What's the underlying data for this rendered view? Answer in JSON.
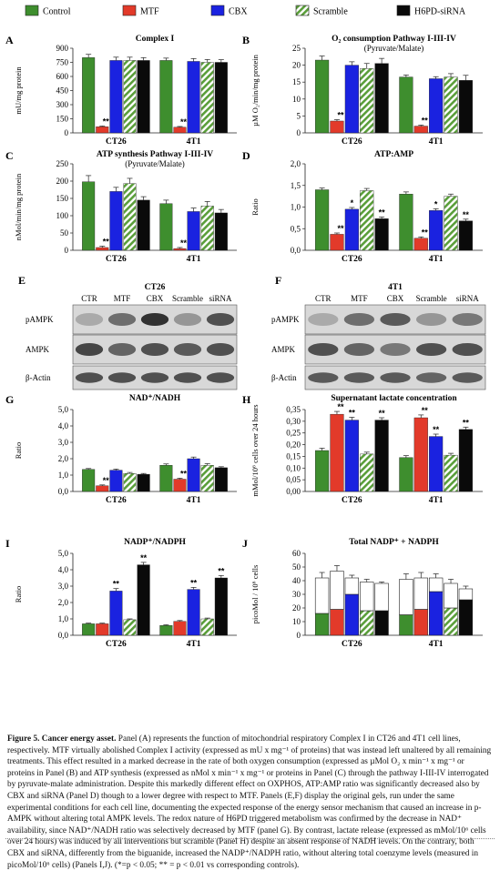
{
  "colors": {
    "control": "#3e8e2e",
    "mtf": "#e23a2a",
    "cbx": "#1a22e0",
    "scramble": "#5a9e3a",
    "siRNA": "#0a0a0a",
    "blot_bg": "#d8d8d8"
  },
  "legend": [
    {
      "key": "control",
      "label": "Control",
      "fill": "solid"
    },
    {
      "key": "mtf",
      "label": "MTF",
      "fill": "solid"
    },
    {
      "key": "cbx",
      "label": "CBX",
      "fill": "solid"
    },
    {
      "key": "scramble",
      "label": "Scramble",
      "fill": "hatch"
    },
    {
      "key": "siRNA",
      "label": "H6PD-siRNA",
      "fill": "solid"
    }
  ],
  "chart_data": [
    {
      "id": "A",
      "type": "bar",
      "title": "Complex I",
      "subtitle": "",
      "ylabel": "mU/mg protein",
      "ylim": [
        0,
        900
      ],
      "ticks": [
        "0",
        "150",
        "300",
        "450",
        "600",
        "750",
        "900"
      ],
      "categories": [
        "CT26",
        "4T1"
      ],
      "series": [
        {
          "key": "control",
          "values": [
            800,
            770
          ],
          "err": [
            35,
            25
          ]
        },
        {
          "key": "mtf",
          "values": [
            65,
            60
          ],
          "err": [
            8,
            8
          ],
          "sig": [
            "**",
            "**"
          ]
        },
        {
          "key": "cbx",
          "values": [
            770,
            760
          ],
          "err": [
            35,
            30
          ]
        },
        {
          "key": "scramble",
          "values": [
            770,
            750
          ],
          "err": [
            35,
            30
          ]
        },
        {
          "key": "siRNA",
          "values": [
            770,
            750
          ],
          "err": [
            30,
            28
          ]
        }
      ]
    },
    {
      "id": "B",
      "type": "bar",
      "title": "O₂ consumption Pathway I-III-IV",
      "subtitle": "(Pyruvate/Malate)",
      "ylabel": "µM O₂/min/mg protein",
      "ylim": [
        0,
        25
      ],
      "ticks": [
        "0",
        "5",
        "10",
        "15",
        "20",
        "25"
      ],
      "categories": [
        "CT26",
        "4T1"
      ],
      "series": [
        {
          "key": "control",
          "values": [
            21.5,
            16.5
          ],
          "err": [
            1.2,
            0.6
          ]
        },
        {
          "key": "mtf",
          "values": [
            3.5,
            2.0
          ],
          "err": [
            0.4,
            0.3
          ],
          "sig": [
            "**",
            "**"
          ]
        },
        {
          "key": "cbx",
          "values": [
            20.0,
            16.0
          ],
          "err": [
            1.0,
            0.6
          ]
        },
        {
          "key": "scramble",
          "values": [
            19.0,
            16.5
          ],
          "err": [
            1.5,
            1.0
          ]
        },
        {
          "key": "siRNA",
          "values": [
            20.5,
            15.5
          ],
          "err": [
            1.5,
            1.5
          ]
        }
      ]
    },
    {
      "id": "C",
      "type": "bar",
      "title": "ATP synthesis Pathway I-III-IV",
      "subtitle": "(Pyruvate/Malate)",
      "ylabel": "nMol/min/mg protein",
      "ylim": [
        0,
        250
      ],
      "ticks": [
        "0",
        "50",
        "100",
        "150",
        "200",
        "250"
      ],
      "categories": [
        "CT26",
        "4T1"
      ],
      "series": [
        {
          "key": "control",
          "values": [
            198,
            135
          ],
          "err": [
            18,
            10
          ]
        },
        {
          "key": "mtf",
          "values": [
            8,
            5
          ],
          "err": [
            4,
            3
          ],
          "sig": [
            "**",
            "**"
          ]
        },
        {
          "key": "cbx",
          "values": [
            170,
            112
          ],
          "err": [
            12,
            10
          ]
        },
        {
          "key": "scramble",
          "values": [
            193,
            128
          ],
          "err": [
            15,
            13
          ]
        },
        {
          "key": "siRNA",
          "values": [
            145,
            108
          ],
          "err": [
            10,
            10
          ]
        }
      ]
    },
    {
      "id": "D",
      "type": "bar",
      "title": "ATP:AMP",
      "subtitle": "",
      "ylabel": "Ratio",
      "ylim": [
        0,
        2.0
      ],
      "ticks": [
        "0,0",
        "0,5",
        "1,0",
        "1,5",
        "2,0"
      ],
      "categories": [
        "CT26",
        "4T1"
      ],
      "series": [
        {
          "key": "control",
          "values": [
            1.4,
            1.3
          ],
          "err": [
            0.04,
            0.05
          ]
        },
        {
          "key": "mtf",
          "values": [
            0.37,
            0.28
          ],
          "err": [
            0.03,
            0.03
          ],
          "sig": [
            "**",
            "**"
          ]
        },
        {
          "key": "cbx",
          "values": [
            0.95,
            0.92
          ],
          "err": [
            0.04,
            0.04
          ],
          "sig": [
            "*",
            "*"
          ]
        },
        {
          "key": "scramble",
          "values": [
            1.38,
            1.25
          ],
          "err": [
            0.05,
            0.05
          ]
        },
        {
          "key": "siRNA",
          "values": [
            0.73,
            0.68
          ],
          "err": [
            0.04,
            0.04
          ],
          "sig": [
            "**",
            "**"
          ]
        }
      ]
    },
    {
      "id": "G",
      "type": "bar",
      "title": "NAD⁺/NADH",
      "subtitle": "",
      "ylabel": "Ratio",
      "ylim": [
        0,
        5.0
      ],
      "ticks": [
        "0,0",
        "1,0",
        "2,0",
        "3,0",
        "4,0",
        "5,0"
      ],
      "categories": [
        "CT26",
        "4T1"
      ],
      "series": [
        {
          "key": "control",
          "values": [
            1.35,
            1.6
          ],
          "err": [
            0.05,
            0.08
          ]
        },
        {
          "key": "mtf",
          "values": [
            0.35,
            0.75
          ],
          "err": [
            0.05,
            0.06
          ],
          "sig": [
            "**",
            "**"
          ]
        },
        {
          "key": "cbx",
          "values": [
            1.3,
            2.0
          ],
          "err": [
            0.07,
            0.1
          ]
        },
        {
          "key": "scramble",
          "values": [
            1.1,
            1.6
          ],
          "err": [
            0.06,
            0.1
          ]
        },
        {
          "key": "siRNA",
          "values": [
            1.05,
            1.45
          ],
          "err": [
            0.05,
            0.06
          ]
        }
      ]
    },
    {
      "id": "H",
      "type": "bar",
      "title": "Supernatant lactate concentration",
      "subtitle": "",
      "ylabel": "mMol/10⁶ cells over 24 hours",
      "ylim": [
        0,
        0.35
      ],
      "ticks": [
        "0,00",
        "0,05",
        "0,10",
        "0,15",
        "0,20",
        "0,25",
        "0,30",
        "0,35"
      ],
      "categories": [
        "CT26",
        "4T1"
      ],
      "series": [
        {
          "key": "control",
          "values": [
            0.175,
            0.145
          ],
          "err": [
            0.01,
            0.008
          ]
        },
        {
          "key": "mtf",
          "values": [
            0.33,
            0.315
          ],
          "err": [
            0.012,
            0.012
          ],
          "sig": [
            "**",
            "**"
          ]
        },
        {
          "key": "cbx",
          "values": [
            0.305,
            0.235
          ],
          "err": [
            0.012,
            0.01
          ],
          "sig": [
            "**",
            "**"
          ]
        },
        {
          "key": "scramble",
          "values": [
            0.16,
            0.155
          ],
          "err": [
            0.008,
            0.008
          ]
        },
        {
          "key": "siRNA",
          "values": [
            0.305,
            0.265
          ],
          "err": [
            0.01,
            0.01
          ],
          "sig": [
            "**",
            "**"
          ]
        }
      ]
    },
    {
      "id": "I",
      "type": "bar",
      "title": "NADP⁺/NADPH",
      "subtitle": "",
      "ylabel": "Ratio",
      "ylim": [
        0,
        5.0
      ],
      "ticks": [
        "0,0",
        "1,0",
        "2,0",
        "3,0",
        "4,0",
        "5,0"
      ],
      "categories": [
        "CT26",
        "4T1"
      ],
      "series": [
        {
          "key": "control",
          "values": [
            0.7,
            0.6
          ],
          "err": [
            0.04,
            0.04
          ]
        },
        {
          "key": "mtf",
          "values": [
            0.7,
            0.85
          ],
          "err": [
            0.04,
            0.05
          ]
        },
        {
          "key": "cbx",
          "values": [
            2.7,
            2.8
          ],
          "err": [
            0.15,
            0.12
          ],
          "sig": [
            "**",
            "**"
          ]
        },
        {
          "key": "scramble",
          "values": [
            0.95,
            1.0
          ],
          "err": [
            0.05,
            0.05
          ]
        },
        {
          "key": "siRNA",
          "values": [
            4.3,
            3.5
          ],
          "err": [
            0.15,
            0.15
          ],
          "sig": [
            "**",
            "**"
          ]
        }
      ]
    },
    {
      "id": "J",
      "type": "stacked_bar",
      "title": "Total NADP⁺ + NADPH",
      "subtitle": "",
      "ylabel": "picoMol / 10⁶ cells",
      "ylim": [
        0,
        60
      ],
      "ticks": [
        "0",
        "10",
        "20",
        "30",
        "40",
        "50",
        "60"
      ],
      "categories": [
        "CT26",
        "4T1"
      ],
      "series": [
        {
          "key": "control",
          "bottom": [
            16,
            15
          ],
          "total": [
            42,
            41
          ],
          "err": [
            4,
            4
          ]
        },
        {
          "key": "mtf",
          "bottom": [
            19,
            19
          ],
          "total": [
            47,
            42
          ],
          "err": [
            4,
            4
          ]
        },
        {
          "key": "cbx",
          "bottom": [
            30,
            32
          ],
          "total": [
            42,
            42
          ],
          "err": [
            2,
            3
          ]
        },
        {
          "key": "scramble",
          "bottom": [
            18,
            20
          ],
          "total": [
            39,
            38
          ],
          "err": [
            2,
            3
          ]
        },
        {
          "key": "siRNA",
          "bottom": [
            18,
            26
          ],
          "total": [
            38,
            34
          ],
          "err": [
            1,
            2
          ]
        }
      ]
    }
  ],
  "blots": [
    {
      "id": "E",
      "title": "CT26",
      "lanes": [
        "CTR",
        "MTF",
        "CBX",
        "Scramble",
        "siRNA"
      ],
      "rows": [
        {
          "label": "pAMPK",
          "intensity": [
            0.25,
            0.55,
            0.85,
            0.35,
            0.7
          ]
        },
        {
          "label": "AMPK",
          "intensity": [
            0.75,
            0.6,
            0.7,
            0.65,
            0.7
          ]
        },
        {
          "label": "β-Actin",
          "intensity": [
            0.7,
            0.7,
            0.7,
            0.7,
            0.7
          ]
        }
      ]
    },
    {
      "id": "F",
      "title": "4T1",
      "lanes": [
        "CTR",
        "MTF",
        "CBX",
        "Scramble",
        "siRNA"
      ],
      "rows": [
        {
          "label": "pAMPK",
          "intensity": [
            0.25,
            0.55,
            0.65,
            0.35,
            0.5
          ]
        },
        {
          "label": "AMPK",
          "intensity": [
            0.7,
            0.6,
            0.5,
            0.7,
            0.7
          ]
        },
        {
          "label": "β-Actin",
          "intensity": [
            0.65,
            0.65,
            0.65,
            0.6,
            0.65
          ]
        }
      ]
    }
  ],
  "caption": {
    "label": "Figure 5.",
    "title": "Cancer energy asset.",
    "body": " Panel (A) represents the function of mitochondrial respiratory Complex I in CT26 and 4T1 cell lines, respectively. MTF virtually abolished Complex I activity (expressed as mU x mg⁻¹ of proteins) that was instead left unaltered by all remaining treatments. This effect resulted in a marked decrease in the rate of both oxygen consumption (expressed as µMol O₂ x min⁻¹ x mg⁻¹ or proteins in Panel (B) and ATP synthesis (expressed as nMol x min⁻¹ x mg⁻¹ or proteins in Panel (C) through the pathway I-III-IV interrogated by pyruvate-malate administration. Despite this markedly different effect on OXPHOS, ATP:AMP ratio was significantly decreased also by CBX and siRNA (Panel D) though to a lower degree with respect to MTF. Panels (E,F) display the original gels, run under the same experimental conditions for each cell line, documenting the expected response of the energy sensor mechanism that caused an increase in p-AMPK without altering total AMPK levels. The redox nature of H6PD triggered metabolism was confirmed by the decrease in NAD⁺ availability, since NAD⁺/NADH ratio was selectively decreased by MTF (panel G). By contrast, lactate release (expressed as mMol/10⁶ cells over 24 hours) was induced by all interventions but scramble (Panel H) despite an absent response of NADH levels. On the contrary, both CBX and siRNA, differently from the biguanide, increased the NADP⁺/NADPH ratio, without altering total coenzyme levels (measured in picoMol/10⁶ cells) (Panels I,J). (*=p < 0.05; ** = p < 0.01 vs corresponding controls)."
  }
}
